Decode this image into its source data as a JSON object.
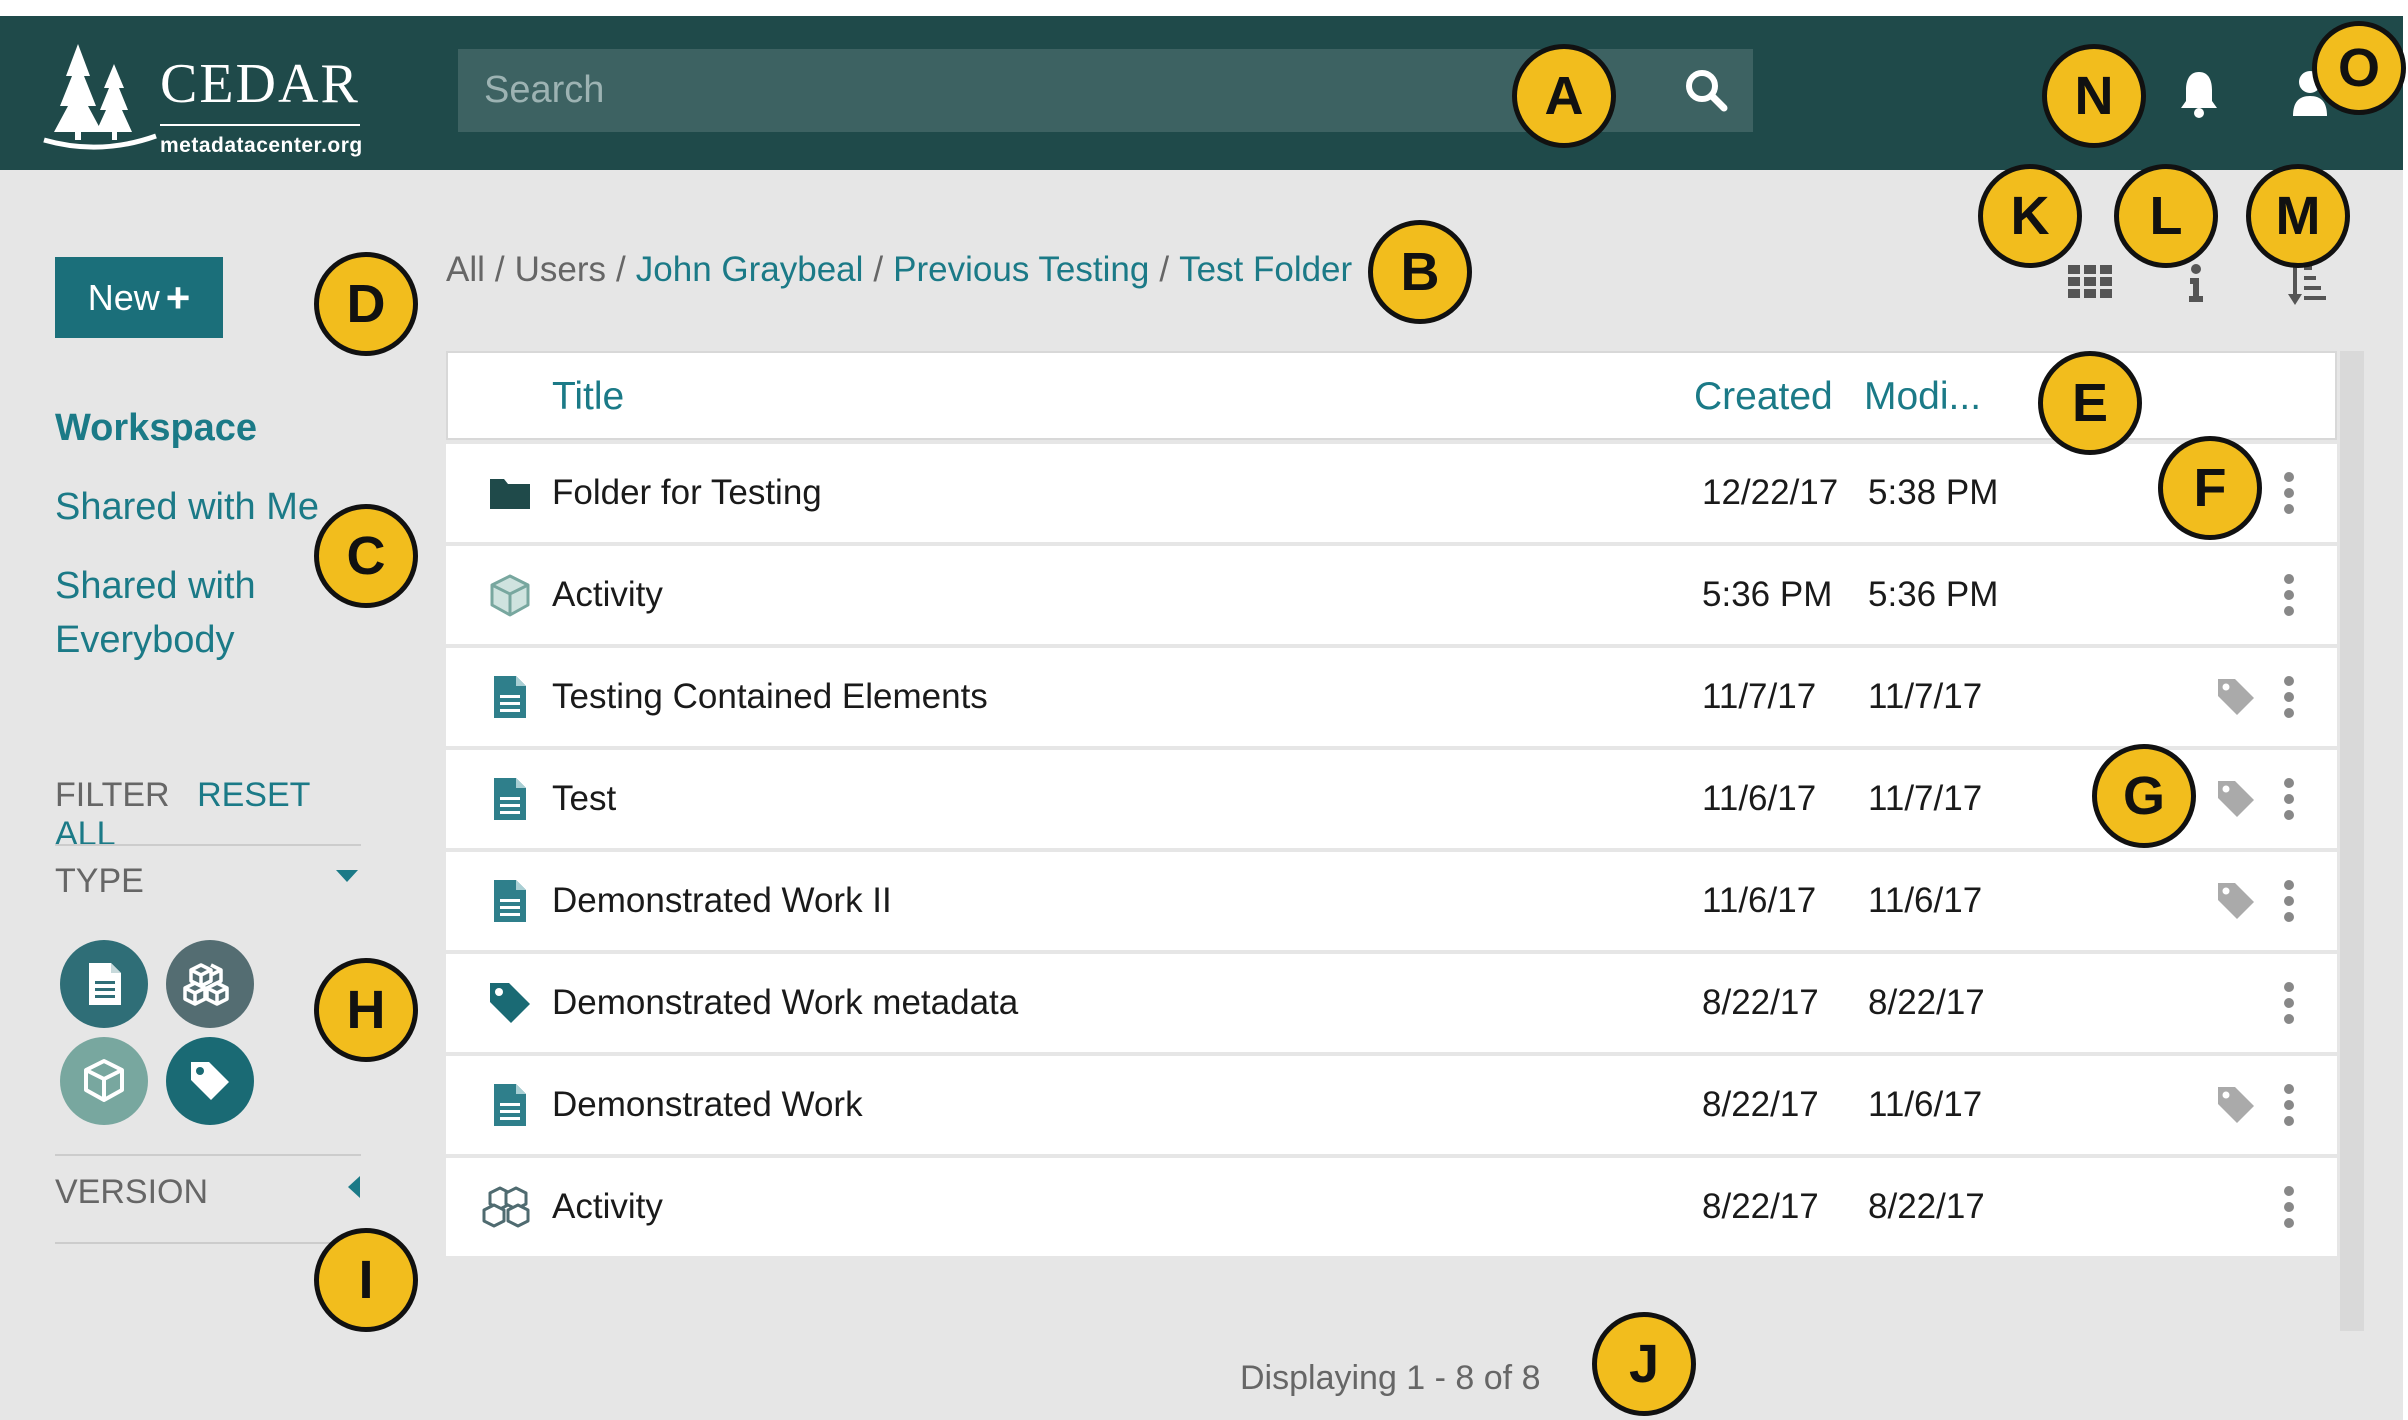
{
  "header": {
    "logo_title": "CEDAR",
    "logo_subtitle": "metadatacenter.org",
    "search_placeholder": "Search"
  },
  "sidebar": {
    "new_button_label": "New",
    "nav": [
      "Workspace",
      "Shared with Me",
      "Shared with",
      "Everybody"
    ],
    "filter_label": "FILTER",
    "reset_label": "RESET ALL",
    "type_label": "TYPE",
    "version_label": "VERSION",
    "type_filters": [
      {
        "icon": "template-icon",
        "color": "#2f6e77"
      },
      {
        "icon": "element-icon",
        "color": "#546d72"
      },
      {
        "icon": "field-icon",
        "color": "#78a79f"
      },
      {
        "icon": "tag-icon",
        "color": "#1a6a74"
      }
    ]
  },
  "breadcrumb": {
    "all": "All",
    "users": "Users",
    "user": "John Graybeal",
    "folder": "Previous Testing",
    "current": "Test Folder"
  },
  "table": {
    "columns": {
      "title": "Title",
      "created": "Created",
      "modified": "Modi..."
    },
    "rows": [
      {
        "icon": "folder-icon",
        "title": "Folder for Testing",
        "created": "12/22/17",
        "modified": "5:38 PM",
        "tag": false
      },
      {
        "icon": "field-icon",
        "title": "Activity",
        "created": "5:36 PM",
        "modified": "5:36 PM",
        "tag": false
      },
      {
        "icon": "template-icon",
        "title": "Testing Contained Elements",
        "created": "11/7/17",
        "modified": "11/7/17",
        "tag": true
      },
      {
        "icon": "template-icon",
        "title": "Test",
        "created": "11/6/17",
        "modified": "11/7/17",
        "tag": true
      },
      {
        "icon": "template-icon",
        "title": "Demonstrated Work II",
        "created": "11/6/17",
        "modified": "11/6/17",
        "tag": true
      },
      {
        "icon": "tag-icon",
        "title": "Demonstrated Work metadata",
        "created": "8/22/17",
        "modified": "8/22/17",
        "tag": false
      },
      {
        "icon": "template-icon",
        "title": "Demonstrated Work",
        "created": "8/22/17",
        "modified": "11/6/17",
        "tag": true
      },
      {
        "icon": "element-icon",
        "title": "Activity",
        "created": "8/22/17",
        "modified": "8/22/17",
        "tag": false
      }
    ]
  },
  "footer": {
    "count_text": "Displaying 1 - 8 of 8"
  },
  "callouts": [
    "A",
    "B",
    "C",
    "D",
    "E",
    "F",
    "G",
    "H",
    "I",
    "J",
    "K",
    "L",
    "M",
    "N",
    "O"
  ],
  "colors": {
    "header_bg": "#1f4a4a",
    "accent": "#1b7a87",
    "callout": "#f2bd1d",
    "background": "#e6e6e6"
  }
}
